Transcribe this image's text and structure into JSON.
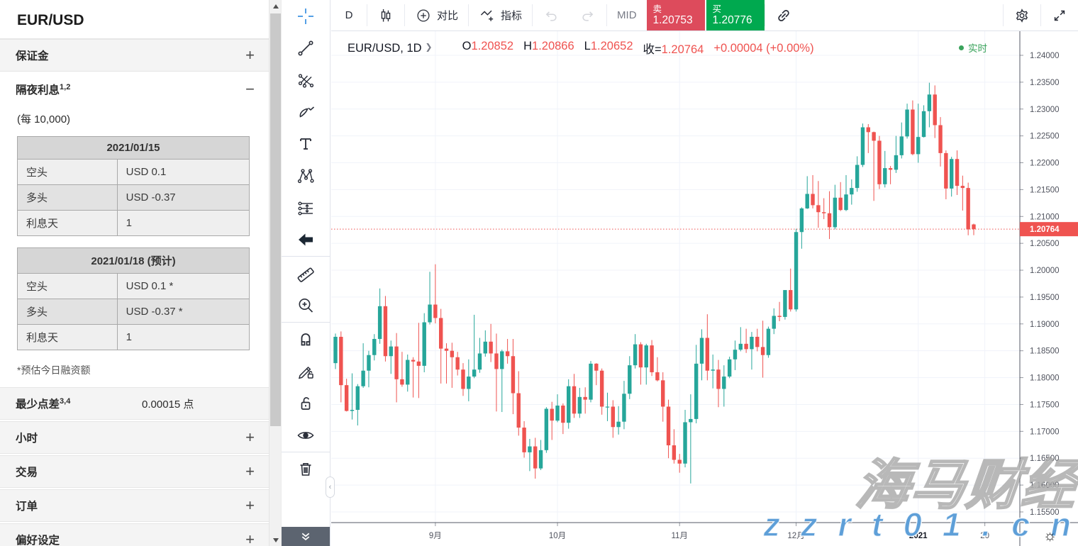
{
  "left_panel": {
    "title": "EUR/USD",
    "margin_section": {
      "label": "保证金",
      "toggle": "+"
    },
    "overnight_section": {
      "label": "隔夜利息",
      "sup": "1,2",
      "toggle": "−",
      "per_label": "(每 10,000)",
      "tables": [
        {
          "header": "2021/01/15",
          "rows": [
            [
              "空头",
              "USD 0.1"
            ],
            [
              "多头",
              "USD -0.37"
            ],
            [
              "利息天",
              "1"
            ]
          ]
        },
        {
          "header": "2021/01/18 (预计)",
          "rows": [
            [
              "空头",
              "USD 0.1 *"
            ],
            [
              "多头",
              "USD -0.37 *"
            ],
            [
              "利息天",
              "1"
            ]
          ]
        }
      ],
      "footnote": "*预估今日融资额"
    },
    "spread_row": {
      "label": "最少点差",
      "sup": "3,4",
      "value": "0.00015 点"
    },
    "accordion": [
      {
        "label": "小时",
        "toggle": "+"
      },
      {
        "label": "交易",
        "toggle": "+"
      },
      {
        "label": "订单",
        "toggle": "+"
      },
      {
        "label": "偏好设定",
        "toggle": "+"
      }
    ]
  },
  "top_toolbar": {
    "interval_label": "D",
    "compare_label": "对比",
    "indicators_label": "指标",
    "mid_label": "MID",
    "sell": {
      "label": "卖",
      "price": "1.20753"
    },
    "buy": {
      "label": "买",
      "price": "1.20776"
    }
  },
  "colors": {
    "sell_red": "#dd4b5c",
    "buy_green": "#00a94f",
    "up": "#26a69a",
    "down": "#ef5350",
    "price_line": "#ef5350",
    "realtime_green": "#3aa35c",
    "crosshair_blue": "#55a0e6",
    "grid": "#f0f3fa",
    "axis_text": "#50535e"
  },
  "realtime_label": "实时",
  "watermark": {
    "brand": "海马财经",
    "url": "z z r t 0 1 . c n",
    "theme_icon": "☼"
  },
  "draw_toolbar": {
    "tools_top": [
      "crosshair-cursor-tool",
      "trend-line-tool",
      "gann-tools",
      "brush-tool",
      "text-tool",
      "xabcd-pattern-tool",
      "long-short-position-tool",
      "arrow-left-tool"
    ],
    "tools_mid": [
      "measure-ruler-tool",
      "zoom-in-tool"
    ],
    "tools_modes": [
      "magnet-mode",
      "drawing-lock-mode",
      "lock-all-drawings",
      "hide-all-drawings"
    ],
    "tools_bottom": [
      "remove-drawings"
    ],
    "footer_icon": "collapse-toolbar-chevrons"
  },
  "chart_data": {
    "type": "candlestick",
    "symbol": "EUR/USD",
    "interval": "1D",
    "legend": {
      "open_key": "O",
      "open": "1.20852",
      "high_key": "H",
      "high": "1.20866",
      "low_key": "L",
      "low": "1.20652",
      "close_key": "收=",
      "close": "1.20764",
      "change": "+0.00004 (+0.00%)"
    },
    "price_line_value": 1.20764,
    "price_tag": "1.20764",
    "y_axis": {
      "min": 1.155,
      "max": 1.24,
      "step": 0.005,
      "labels": [
        "1.24000",
        "1.23500",
        "1.23000",
        "1.22500",
        "1.22000",
        "1.21500",
        "1.21000",
        "1.20500",
        "1.20000",
        "1.19500",
        "1.19000",
        "1.18500",
        "1.18000",
        "1.17500",
        "1.17000",
        "1.16500",
        "1.16000",
        "1.15500"
      ]
    },
    "x_ticks": [
      {
        "label": "9月",
        "i": 18,
        "bold": false
      },
      {
        "label": "10月",
        "i": 40,
        "bold": false
      },
      {
        "label": "11月",
        "i": 62,
        "bold": false
      },
      {
        "label": "12月",
        "i": 83,
        "bold": false
      },
      {
        "label": "2021",
        "i": 105,
        "bold": true
      },
      {
        "label": "20",
        "i": 117,
        "bold": false
      }
    ],
    "candles": [
      [
        1.1827,
        1.1882,
        1.1816,
        1.1876
      ],
      [
        1.1876,
        1.1886,
        1.1754,
        1.1786
      ],
      [
        1.1786,
        1.1798,
        1.1737,
        1.1738
      ],
      [
        1.1738,
        1.1808,
        1.1722,
        1.174
      ],
      [
        1.174,
        1.1788,
        1.1711,
        1.1784
      ],
      [
        1.1784,
        1.1864,
        1.1781,
        1.1813
      ],
      [
        1.1813,
        1.185,
        1.1782,
        1.1842
      ],
      [
        1.1842,
        1.1881,
        1.1832,
        1.1872
      ],
      [
        1.1872,
        1.1966,
        1.1863,
        1.1933
      ],
      [
        1.1933,
        1.1952,
        1.183,
        1.184
      ],
      [
        1.184,
        1.1869,
        1.1807,
        1.1858
      ],
      [
        1.1858,
        1.1883,
        1.1754,
        1.1797
      ],
      [
        1.1797,
        1.1848,
        1.1783,
        1.1787
      ],
      [
        1.1787,
        1.1843,
        1.1774,
        1.1833
      ],
      [
        1.1833,
        1.1838,
        1.1763,
        1.183
      ],
      [
        1.183,
        1.1902,
        1.1762,
        1.1822
      ],
      [
        1.1822,
        1.192,
        1.181,
        1.1903
      ],
      [
        1.1903,
        1.1997,
        1.1899,
        1.1936
      ],
      [
        1.1936,
        1.2011,
        1.1901,
        1.1911
      ],
      [
        1.1911,
        1.1928,
        1.1789,
        1.1854
      ],
      [
        1.1854,
        1.1864,
        1.1789,
        1.185
      ],
      [
        1.185,
        1.1865,
        1.1781,
        1.1838
      ],
      [
        1.1838,
        1.1848,
        1.1804,
        1.1815
      ],
      [
        1.1815,
        1.1827,
        1.1766,
        1.1779
      ],
      [
        1.1779,
        1.1834,
        1.1756,
        1.1802
      ],
      [
        1.1802,
        1.1917,
        1.1799,
        1.1815
      ],
      [
        1.1815,
        1.1874,
        1.1809,
        1.1845
      ],
      [
        1.1845,
        1.1888,
        1.1839,
        1.1867
      ],
      [
        1.1867,
        1.19,
        1.1829,
        1.1845
      ],
      [
        1.1845,
        1.1882,
        1.1737,
        1.1816
      ],
      [
        1.1816,
        1.1852,
        1.1736,
        1.1849
      ],
      [
        1.1849,
        1.1872,
        1.1826,
        1.184
      ],
      [
        1.184,
        1.1872,
        1.1732,
        1.1771
      ],
      [
        1.1771,
        1.1812,
        1.1692,
        1.1707
      ],
      [
        1.1707,
        1.1719,
        1.1651,
        1.1661
      ],
      [
        1.1661,
        1.1686,
        1.1626,
        1.1672
      ],
      [
        1.1672,
        1.1688,
        1.1612,
        1.1631
      ],
      [
        1.1631,
        1.1684,
        1.1628,
        1.1665
      ],
      [
        1.1665,
        1.1745,
        1.166,
        1.1742
      ],
      [
        1.1742,
        1.1755,
        1.1684,
        1.172
      ],
      [
        1.172,
        1.1769,
        1.1717,
        1.1748
      ],
      [
        1.1748,
        1.1752,
        1.1695,
        1.1716
      ],
      [
        1.1716,
        1.1797,
        1.1705,
        1.1784
      ],
      [
        1.1784,
        1.1807,
        1.1725,
        1.1733
      ],
      [
        1.1733,
        1.1781,
        1.1725,
        1.1764
      ],
      [
        1.1764,
        1.1782,
        1.1733,
        1.1759
      ],
      [
        1.1759,
        1.1831,
        1.1754,
        1.1826
      ],
      [
        1.1826,
        1.1827,
        1.1786,
        1.1813
      ],
      [
        1.1813,
        1.1817,
        1.1731,
        1.1746
      ],
      [
        1.1746,
        1.1772,
        1.1719,
        1.1746
      ],
      [
        1.1746,
        1.1758,
        1.1688,
        1.1708
      ],
      [
        1.1708,
        1.1747,
        1.1694,
        1.1718
      ],
      [
        1.1718,
        1.1794,
        1.1704,
        1.177
      ],
      [
        1.177,
        1.184,
        1.176,
        1.1823
      ],
      [
        1.1823,
        1.1881,
        1.1817,
        1.1862
      ],
      [
        1.1862,
        1.1866,
        1.1787,
        1.1819
      ],
      [
        1.1819,
        1.1863,
        1.1787,
        1.186
      ],
      [
        1.186,
        1.187,
        1.1803,
        1.181
      ],
      [
        1.181,
        1.1838,
        1.1793,
        1.1795
      ],
      [
        1.1795,
        1.181,
        1.1718,
        1.1746
      ],
      [
        1.1746,
        1.1759,
        1.165,
        1.1674
      ],
      [
        1.1674,
        1.1704,
        1.164,
        1.1647
      ],
      [
        1.1647,
        1.1658,
        1.1623,
        1.164
      ],
      [
        1.164,
        1.174,
        1.1633,
        1.1717
      ],
      [
        1.1717,
        1.1769,
        1.1603,
        1.1723
      ],
      [
        1.1723,
        1.1861,
        1.1715,
        1.1826
      ],
      [
        1.1826,
        1.189,
        1.1795,
        1.1874
      ],
      [
        1.1874,
        1.1918,
        1.1795,
        1.1813
      ],
      [
        1.1813,
        1.1843,
        1.178,
        1.1815
      ],
      [
        1.1815,
        1.1833,
        1.1745,
        1.1779
      ],
      [
        1.1779,
        1.1823,
        1.1746,
        1.1802
      ],
      [
        1.1802,
        1.1839,
        1.1799,
        1.1834
      ],
      [
        1.1834,
        1.1869,
        1.1814,
        1.1852
      ],
      [
        1.1852,
        1.1894,
        1.1849,
        1.1863
      ],
      [
        1.1863,
        1.1891,
        1.1846,
        1.1853
      ],
      [
        1.1853,
        1.1885,
        1.1815,
        1.1876
      ],
      [
        1.1876,
        1.1891,
        1.1849,
        1.1857
      ],
      [
        1.1857,
        1.1906,
        1.18,
        1.1842
      ],
      [
        1.1842,
        1.1895,
        1.1837,
        1.1891
      ],
      [
        1.1891,
        1.1929,
        1.1881,
        1.1915
      ],
      [
        1.1915,
        1.1941,
        1.1905,
        1.1913
      ],
      [
        1.1913,
        1.1963,
        1.1908,
        1.1963
      ],
      [
        1.1963,
        1.2003,
        1.1923,
        1.1927
      ],
      [
        1.1927,
        1.2077,
        1.1923,
        1.2071
      ],
      [
        1.2071,
        1.2117,
        1.204,
        1.2115
      ],
      [
        1.2115,
        1.2175,
        1.2114,
        1.2142
      ],
      [
        1.2142,
        1.2177,
        1.2115,
        1.2121
      ],
      [
        1.2121,
        1.2166,
        1.2079,
        1.2108
      ],
      [
        1.2108,
        1.2134,
        1.2095,
        1.2106
      ],
      [
        1.2106,
        1.2147,
        1.2058,
        1.208
      ],
      [
        1.208,
        1.2159,
        1.2076,
        1.2135
      ],
      [
        1.2135,
        1.2164,
        1.211,
        1.2112
      ],
      [
        1.2112,
        1.2177,
        1.211,
        1.2141
      ],
      [
        1.2141,
        1.2169,
        1.2122,
        1.2153
      ],
      [
        1.2153,
        1.2212,
        1.2146,
        1.2196
      ],
      [
        1.2196,
        1.2273,
        1.2192,
        1.2266
      ],
      [
        1.2266,
        1.2272,
        1.2218,
        1.2257
      ],
      [
        1.2257,
        1.2258,
        1.2129,
        1.2241
      ],
      [
        1.2241,
        1.225,
        1.2151,
        1.216
      ],
      [
        1.216,
        1.2222,
        1.2154,
        1.219
      ],
      [
        1.219,
        1.2194,
        1.216,
        1.2187
      ],
      [
        1.2187,
        1.225,
        1.2181,
        1.2214
      ],
      [
        1.2214,
        1.2275,
        1.2208,
        1.2249
      ],
      [
        1.2249,
        1.231,
        1.2245,
        1.2299
      ],
      [
        1.2299,
        1.2316,
        1.2214,
        1.2216
      ],
      [
        1.2216,
        1.231,
        1.22,
        1.2248
      ],
      [
        1.2248,
        1.2307,
        1.2247,
        1.2296
      ],
      [
        1.2296,
        1.2349,
        1.2266,
        1.2327
      ],
      [
        1.2327,
        1.2344,
        1.2246,
        1.227
      ],
      [
        1.227,
        1.2285,
        1.2193,
        1.2218
      ],
      [
        1.2218,
        1.2223,
        1.2132,
        1.2152
      ],
      [
        1.2152,
        1.2211,
        1.2137,
        1.2207
      ],
      [
        1.2207,
        1.2223,
        1.214,
        1.2157
      ],
      [
        1.2157,
        1.2176,
        1.2111,
        1.2153
      ],
      [
        1.2153,
        1.2163,
        1.2065,
        1.2076
      ],
      [
        1.20852,
        1.20866,
        1.20652,
        1.20764
      ]
    ]
  }
}
